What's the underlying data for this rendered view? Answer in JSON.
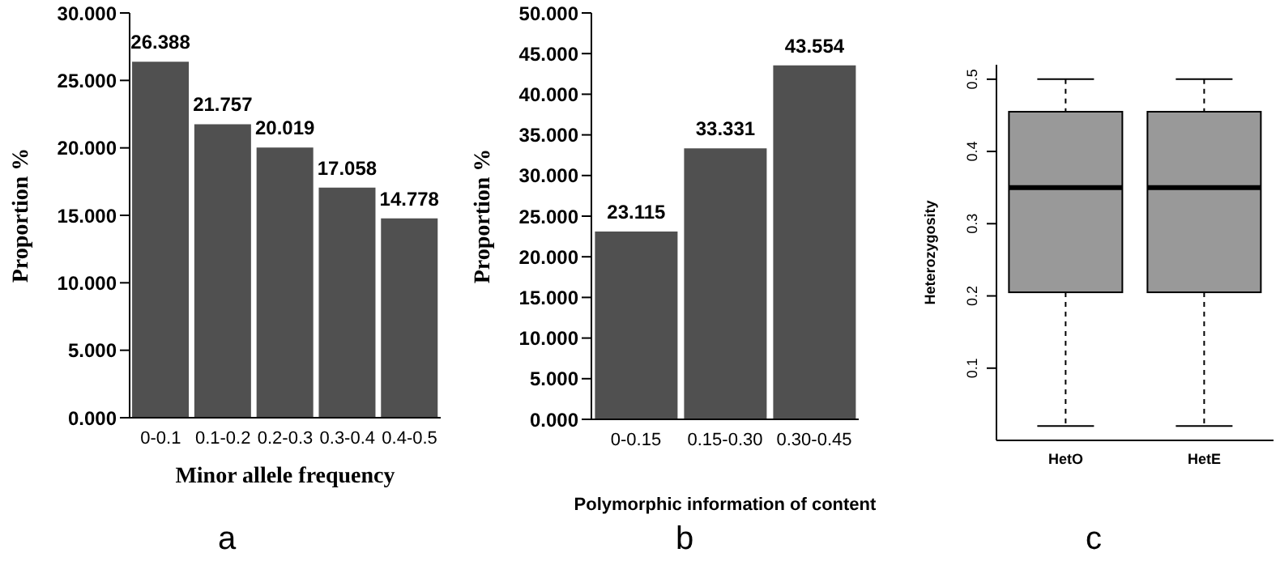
{
  "chart_data": [
    {
      "type": "bar",
      "categories": [
        "0-0.1",
        "0.1-0.2",
        "0.2-0.3",
        "0.3-0.4",
        "0.4-0.5"
      ],
      "values": [
        26.388,
        21.757,
        20.019,
        17.058,
        14.778
      ],
      "color": "#505050",
      "data_labels": true,
      "xlabel": "Minor  allele frequency",
      "ylabel": "Proportion  %",
      "ylim": [
        0,
        30
      ],
      "yticks": [
        {
          "value": 0,
          "label": "0.000"
        },
        {
          "value": 5,
          "label": "5.000"
        },
        {
          "value": 10,
          "label": "10.000"
        },
        {
          "value": 15,
          "label": "15.000"
        },
        {
          "value": 20,
          "label": "20.000"
        },
        {
          "value": 25,
          "label": "25.000"
        },
        {
          "value": 30,
          "label": "30.000"
        }
      ],
      "annotations": [
        "a"
      ]
    },
    {
      "type": "bar",
      "categories": [
        "0-0.15",
        "0.15-0.30",
        "0.30-0.45"
      ],
      "values": [
        23.115,
        33.331,
        43.554
      ],
      "color": "#505050",
      "data_labels": true,
      "xlabel": "Polymorphic information of content",
      "ylabel": "Proportion  %",
      "ylim": [
        0,
        50
      ],
      "yticks": [
        {
          "value": 0,
          "label": "0.000"
        },
        {
          "value": 5,
          "label": "5.000"
        },
        {
          "value": 10,
          "label": "10.000"
        },
        {
          "value": 15,
          "label": "15.000"
        },
        {
          "value": 20,
          "label": "20.000"
        },
        {
          "value": 25,
          "label": "25.000"
        },
        {
          "value": 30,
          "label": "30.000"
        },
        {
          "value": 35,
          "label": "35.000"
        },
        {
          "value": 40,
          "label": "40.000"
        },
        {
          "value": 45,
          "label": "45.000"
        },
        {
          "value": 50,
          "label": "50.000"
        }
      ],
      "annotations": [
        "b"
      ]
    },
    {
      "type": "box",
      "categories": [
        "HetO",
        "HetE"
      ],
      "color": "#999999",
      "ylabel": "Heterozygosity",
      "ylim": [
        0,
        0.52
      ],
      "yticks": [
        0.1,
        0.2,
        0.3,
        0.4,
        0.5
      ],
      "boxes": [
        {
          "low": 0.02,
          "q1": 0.205,
          "median": 0.35,
          "q3": 0.455,
          "high": 0.5
        },
        {
          "low": 0.02,
          "q1": 0.205,
          "median": 0.35,
          "q3": 0.455,
          "high": 0.5
        }
      ],
      "annotations": [
        "c"
      ]
    }
  ]
}
